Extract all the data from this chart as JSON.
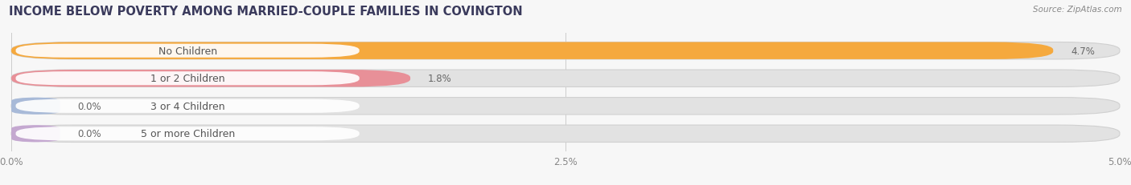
{
  "title": "INCOME BELOW POVERTY AMONG MARRIED-COUPLE FAMILIES IN COVINGTON",
  "source": "Source: ZipAtlas.com",
  "categories": [
    "No Children",
    "1 or 2 Children",
    "3 or 4 Children",
    "5 or more Children"
  ],
  "values": [
    4.7,
    1.8,
    0.0,
    0.0
  ],
  "bar_colors": [
    "#F5A93E",
    "#E89098",
    "#A8BAD8",
    "#C4A8D0"
  ],
  "xlim": [
    0,
    5.0
  ],
  "xticks": [
    0.0,
    2.5,
    5.0
  ],
  "xtick_labels": [
    "0.0%",
    "2.5%",
    "5.0%"
  ],
  "bar_height": 0.62,
  "background_color": "#f7f7f7",
  "bar_background_color": "#e2e2e2",
  "title_fontsize": 10.5,
  "label_fontsize": 9,
  "value_fontsize": 8.5,
  "label_pill_color": "#ffffff",
  "label_text_color": "#555555",
  "value_text_color": "#666666"
}
